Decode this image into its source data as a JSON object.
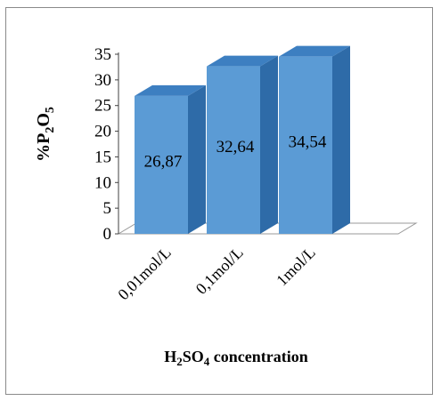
{
  "chart_data": {
    "type": "bar",
    "style": "3d",
    "categories": [
      "0,01mol/L",
      "0,1mol/L",
      "1mol/L"
    ],
    "values": [
      26.87,
      32.64,
      34.54
    ],
    "data_labels": [
      "26,87",
      "32,64",
      "34,54"
    ],
    "ylabel": "%P2O5",
    "xlabel": "H2SO4 concentration",
    "ylim": [
      0,
      35
    ],
    "yticks": [
      "0",
      "5",
      "10",
      "15",
      "20",
      "25",
      "30",
      "35"
    ],
    "grid": false,
    "legend": "none",
    "colors": {
      "bar_front": "#5b9bd5",
      "bar_side": "#2e6ba8",
      "bar_top": "#3d7fc1",
      "floor": "#ffffff",
      "axis": "#404040"
    }
  }
}
